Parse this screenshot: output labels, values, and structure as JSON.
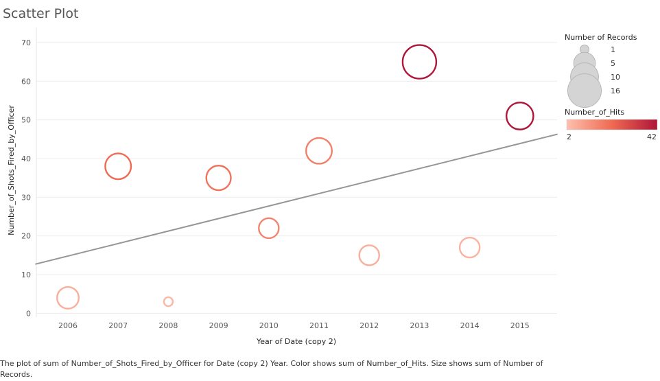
{
  "chart_data": {
    "type": "scatter",
    "title": "Scatter Plot",
    "xlabel": "Year of Date (copy 2)",
    "ylabel": "Number_of_Shots_Fired_by_Officer",
    "categories": [
      "2006",
      "2007",
      "2008",
      "2009",
      "2010",
      "2011",
      "2012",
      "2013",
      "2014",
      "2015"
    ],
    "yticks": [
      0,
      10,
      20,
      30,
      40,
      50,
      60,
      70
    ],
    "ylim": [
      -1,
      73
    ],
    "points": [
      {
        "x": "2006",
        "y": 4,
        "records": 5,
        "hits": 6
      },
      {
        "x": "2007",
        "y": 38,
        "records": 8,
        "hits": 22
      },
      {
        "x": "2008",
        "y": 3,
        "records": 1,
        "hits": 4
      },
      {
        "x": "2009",
        "y": 35,
        "records": 7,
        "hits": 20
      },
      {
        "x": "2010",
        "y": 22,
        "records": 4,
        "hits": 16
      },
      {
        "x": "2011",
        "y": 42,
        "records": 8,
        "hits": 17
      },
      {
        "x": "2012",
        "y": 15,
        "records": 4,
        "hits": 6
      },
      {
        "x": "2013",
        "y": 65,
        "records": 16,
        "hits": 42
      },
      {
        "x": "2014",
        "y": 17,
        "records": 4,
        "hits": 5
      },
      {
        "x": "2015",
        "y": 51,
        "records": 9,
        "hits": 42
      }
    ],
    "trend_line": {
      "start": [
        2005.35,
        12.7
      ],
      "end": [
        2015.75,
        46.3
      ]
    },
    "grid": true,
    "size_legend": {
      "title": "Number of Records",
      "values": [
        1,
        5,
        10,
        16
      ]
    },
    "color_legend": {
      "title": "Number_of_Hits",
      "min": 2,
      "max": 42,
      "color_min": "#fcc0ae",
      "color_mid": "#ef6a52",
      "color_max": "#b0153a"
    }
  },
  "caption": "The plot of sum of Number_of_Shots_Fired_by_Officer for Date (copy 2) Year.  Color shows sum of Number_of_Hits.  Size shows sum of Number of Records."
}
